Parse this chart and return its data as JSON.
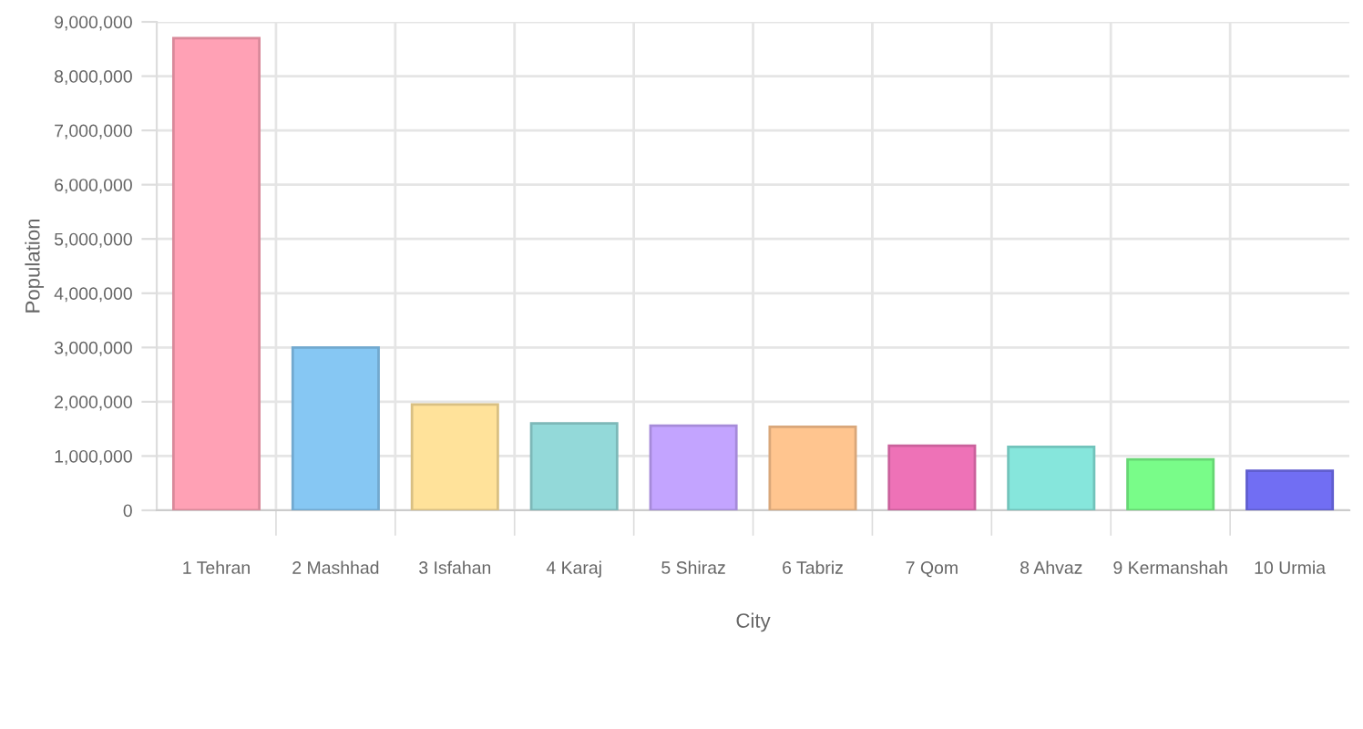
{
  "chart_data": {
    "type": "bar",
    "xlabel": "City",
    "ylabel": "Population",
    "categories": [
      "1 Tehran",
      "2 Mashhad",
      "3 Isfahan",
      "4 Karaj",
      "5 Shiraz",
      "6 Tabriz",
      "7 Qom",
      "8 Ahvaz",
      "9 Kermanshah",
      "10 Urmia"
    ],
    "values": [
      8700000,
      3000000,
      1950000,
      1600000,
      1560000,
      1540000,
      1190000,
      1170000,
      940000,
      730000
    ],
    "colors": [
      "#ffa1b5",
      "#86c7f3",
      "#ffe29a",
      "#93d9d9",
      "#c3a4ff",
      "#ffc58f",
      "#ee72b7",
      "#86e6dc",
      "#79fc89",
      "#716ef3"
    ],
    "ylim": [
      0,
      9000000
    ],
    "yticks": [
      {
        "value": 0,
        "label": "0"
      },
      {
        "value": 1000000,
        "label": "1,000,000"
      },
      {
        "value": 2000000,
        "label": "2,000,000"
      },
      {
        "value": 3000000,
        "label": "3,000,000"
      },
      {
        "value": 4000000,
        "label": "4,000,000"
      },
      {
        "value": 5000000,
        "label": "5,000,000"
      },
      {
        "value": 6000000,
        "label": "6,000,000"
      },
      {
        "value": 7000000,
        "label": "7,000,000"
      },
      {
        "value": 8000000,
        "label": "8,000,000"
      },
      {
        "value": 9000000,
        "label": "9,000,000"
      }
    ],
    "grid": true
  }
}
